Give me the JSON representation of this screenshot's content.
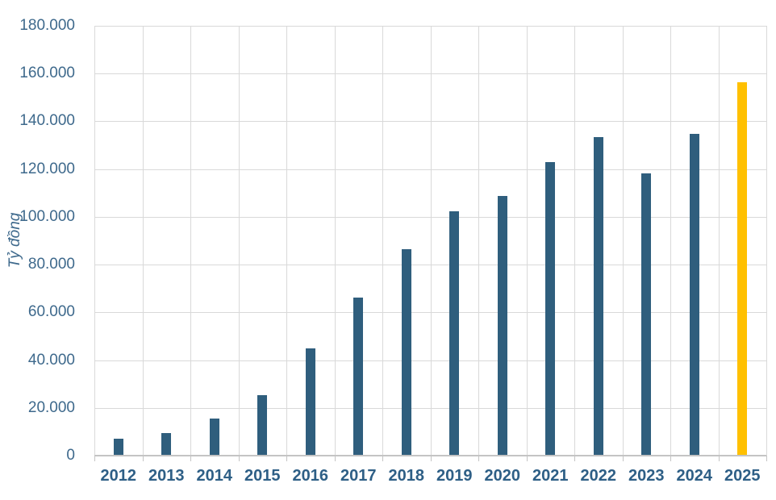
{
  "chart_data": {
    "type": "bar",
    "title": "",
    "xlabel": "",
    "ylabel": "Tỷ đồng",
    "categories": [
      "2012",
      "2013",
      "2014",
      "2015",
      "2016",
      "2017",
      "2018",
      "2019",
      "2020",
      "2021",
      "2022",
      "2023",
      "2024",
      "2025"
    ],
    "values": [
      7200,
      9600,
      15700,
      25400,
      44800,
      66300,
      86500,
      102200,
      108600,
      122800,
      133400,
      118300,
      134600,
      156300
    ],
    "ylim": [
      0,
      180000
    ],
    "y_ticks": [
      {
        "value": 0,
        "label": "0"
      },
      {
        "value": 20000,
        "label": "20.000"
      },
      {
        "value": 40000,
        "label": "40.000"
      },
      {
        "value": 60000,
        "label": "60.000"
      },
      {
        "value": 80000,
        "label": "80.000"
      },
      {
        "value": 100000,
        "label": "100.000"
      },
      {
        "value": 120000,
        "label": "120.000"
      },
      {
        "value": 140000,
        "label": "140.000"
      },
      {
        "value": 160000,
        "label": "160.000"
      },
      {
        "value": 180000,
        "label": "180.000"
      }
    ],
    "grid": true,
    "legend": "none",
    "highlight_index": 13,
    "colors": {
      "bar": "#2F5E7D",
      "bar_highlight": "#FFC000",
      "y_tick_text": "#3E698C",
      "x_tick_text": "#2E5F86",
      "axis_title_text": "#3E698C",
      "gridline": "#D9D9D9",
      "axis_line": "#C4C4C4",
      "background": "#FFFFFF"
    }
  }
}
